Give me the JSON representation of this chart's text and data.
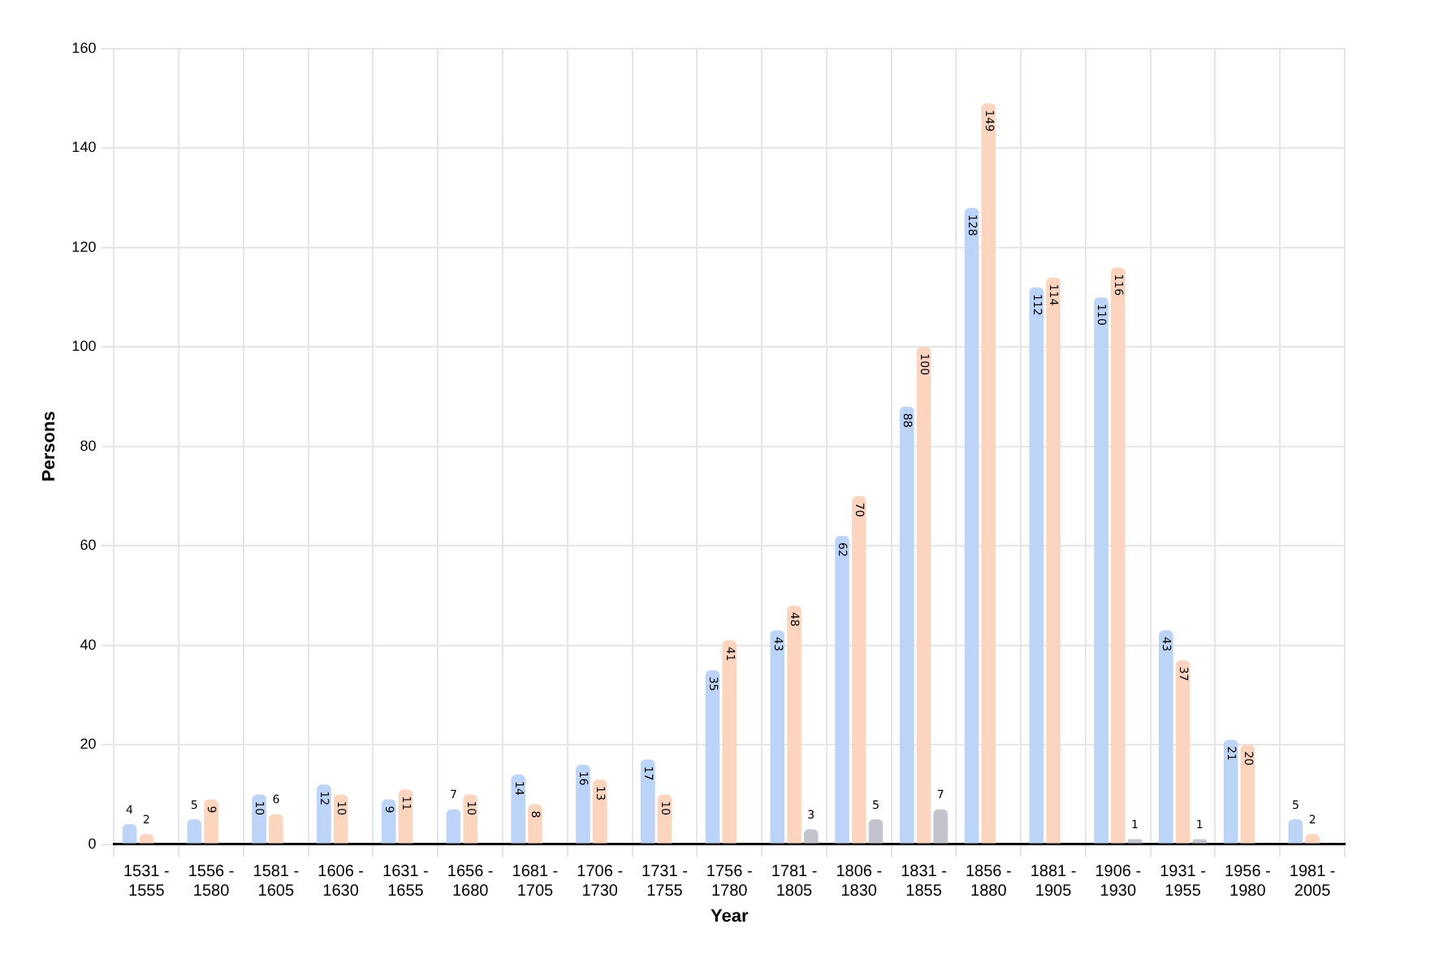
{
  "chart_data": {
    "type": "bar",
    "xlabel": "Year",
    "ylabel": "Persons",
    "categories": [
      "1531 - 1555",
      "1556 - 1580",
      "1581 - 1605",
      "1606 - 1630",
      "1631 - 1655",
      "1656 - 1680",
      "1681 - 1705",
      "1706 - 1730",
      "1731 - 1755",
      "1756 - 1780",
      "1781 - 1805",
      "1806 - 1830",
      "1831 - 1855",
      "1856 - 1880",
      "1881 - 1905",
      "1906 - 1930",
      "1931 - 1955",
      "1956 - 1980",
      "1981 - 2005"
    ],
    "series": [
      {
        "color": "#bcd4f8",
        "values": [
          4,
          5,
          10,
          12,
          9,
          7,
          14,
          16,
          17,
          35,
          43,
          62,
          88,
          128,
          112,
          110,
          43,
          21,
          5
        ]
      },
      {
        "color": "#fdd5bf",
        "values": [
          2,
          9,
          6,
          10,
          11,
          10,
          8,
          13,
          10,
          41,
          48,
          70,
          100,
          149,
          114,
          116,
          37,
          20,
          2
        ]
      },
      {
        "color": "#c2c3cc",
        "values": [
          null,
          null,
          null,
          null,
          null,
          null,
          null,
          null,
          null,
          null,
          3,
          5,
          7,
          null,
          null,
          1,
          1,
          null,
          null
        ]
      }
    ],
    "ylim": [
      0,
      160
    ],
    "yticks": [
      0,
      20,
      40,
      60,
      80,
      100,
      120,
      140,
      160
    ],
    "grid": true,
    "data_labels": true,
    "legend": false
  }
}
